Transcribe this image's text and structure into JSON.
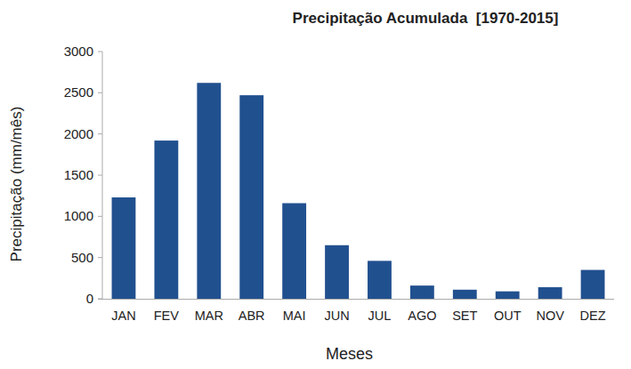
{
  "chart_data": {
    "type": "bar",
    "title": "Precipitação Acumulada  [1970-2015]",
    "x_label": "Meses",
    "y_label": "Precipitação (mm/mês)",
    "categories": [
      "JAN",
      "FEV",
      "MAR",
      "ABR",
      "MAI",
      "JUN",
      "JUL",
      "AGO",
      "SET",
      "OUT",
      "NOV",
      "DEZ"
    ],
    "values": [
      1230,
      1920,
      2620,
      2470,
      1160,
      650,
      460,
      160,
      110,
      90,
      140,
      350
    ],
    "color": "#21508f",
    "ylim": [
      0,
      3000
    ],
    "yticks": [
      0,
      500,
      1000,
      1500,
      2000,
      2500,
      3000
    ],
    "grid": false
  }
}
